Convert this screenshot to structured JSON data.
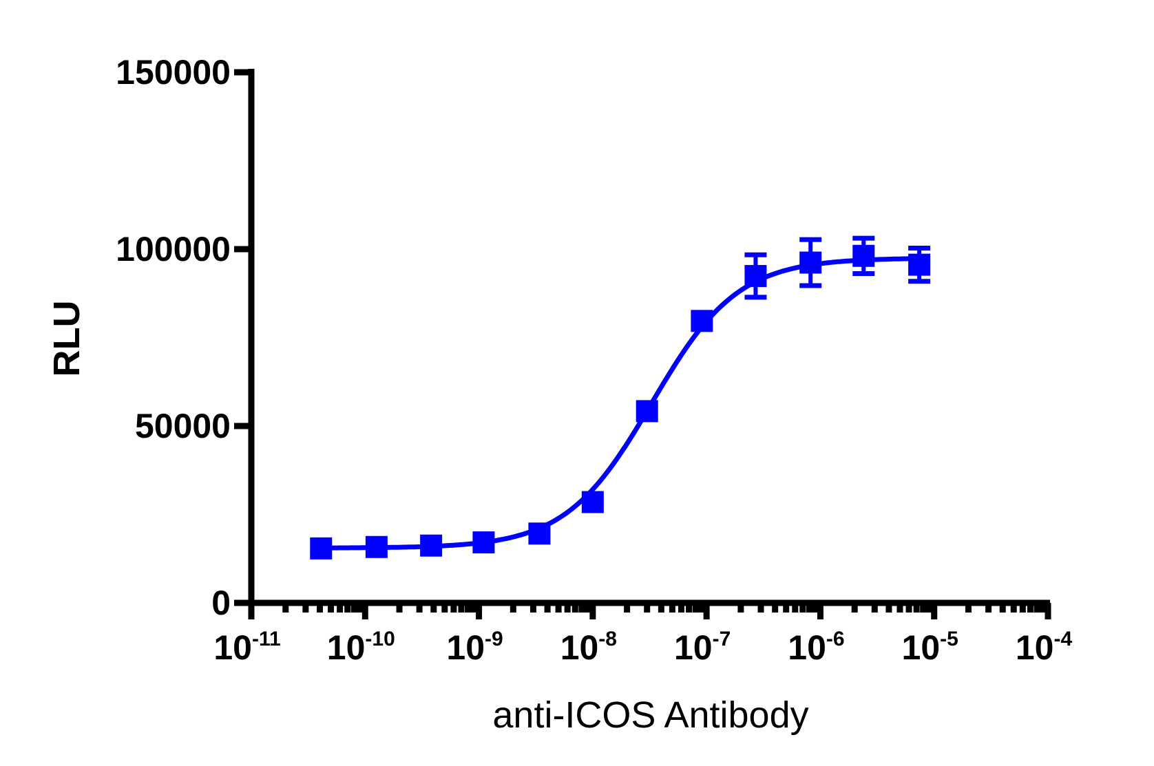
{
  "chart_data": {
    "type": "scatter",
    "title": "",
    "xlabel": "anti-ICOS Antibody",
    "ylabel": "RLU",
    "xscale": "log",
    "xlim": [
      1e-11,
      0.0001
    ],
    "ylim": [
      0,
      150000
    ],
    "grid": false,
    "xtick_labels": [
      {
        "base": "10",
        "exp": "-11"
      },
      {
        "base": "10",
        "exp": "-10"
      },
      {
        "base": "10",
        "exp": "-9"
      },
      {
        "base": "10",
        "exp": "-8"
      },
      {
        "base": "10",
        "exp": "-7"
      },
      {
        "base": "10",
        "exp": "-6"
      },
      {
        "base": "10",
        "exp": "-5"
      },
      {
        "base": "10",
        "exp": "-4"
      }
    ],
    "ytick_labels": [
      "0",
      "50000",
      "100000",
      "150000"
    ],
    "series": [
      {
        "color": "#0000ff",
        "marker": "square",
        "fit": "sigmoidal dose-response curve",
        "x": [
          4.1e-11,
          1.26e-10,
          3.8e-10,
          1.1e-09,
          3.4e-09,
          1e-08,
          3e-08,
          9.1e-08,
          2.7e-07,
          8.2e-07,
          2.4e-06,
          7.4e-06
        ],
        "y": [
          15400,
          15800,
          16200,
          17100,
          19600,
          28500,
          54200,
          79700,
          92400,
          96200,
          98100,
          95600
        ],
        "error": [
          300,
          300,
          300,
          400,
          500,
          600,
          500,
          1500,
          6000,
          6500,
          5000,
          4700
        ]
      }
    ]
  }
}
